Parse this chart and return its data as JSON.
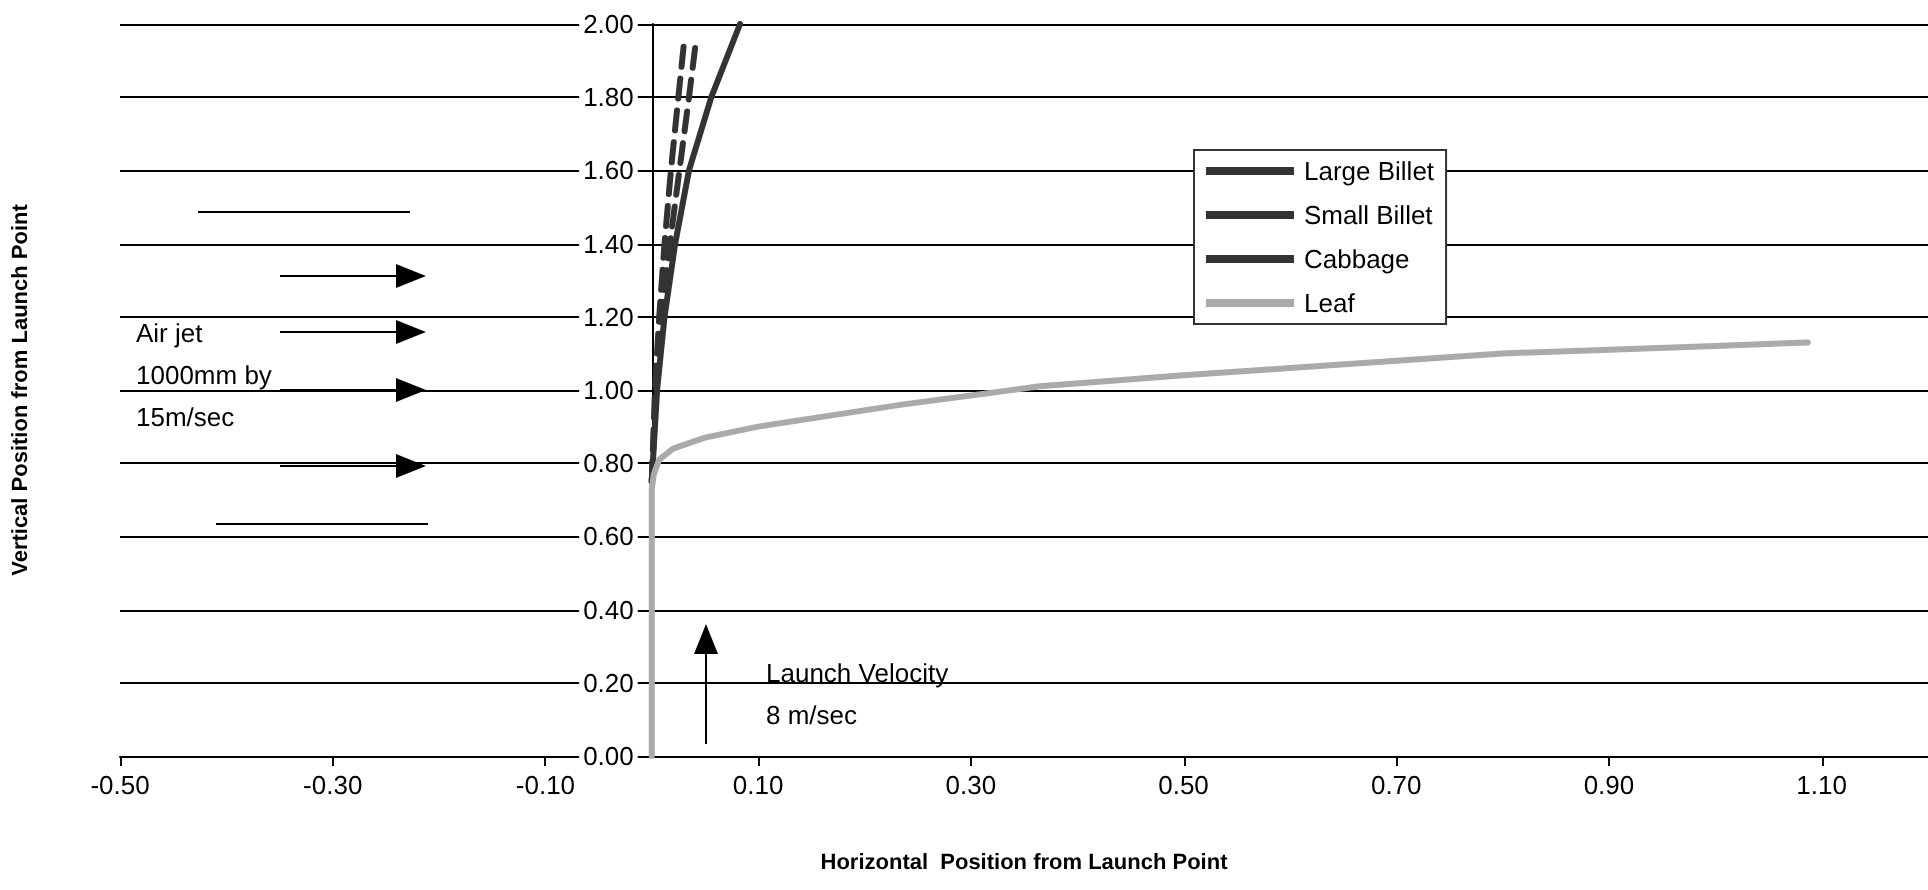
{
  "chart_data": {
    "type": "line",
    "xlabel": "Horizontal  Position from Launch Point",
    "ylabel": "Vertical Position from Launch Point",
    "xlim": [
      -0.5,
      1.2
    ],
    "xticks": [
      {
        "value": -0.5,
        "label": "-0.50"
      },
      {
        "value": -0.3,
        "label": "-0.30"
      },
      {
        "value": -0.1,
        "label": "-0.10"
      },
      {
        "value": 0.1,
        "label": "0.10"
      },
      {
        "value": 0.3,
        "label": "0.30"
      },
      {
        "value": 0.5,
        "label": "0.50"
      },
      {
        "value": 0.7,
        "label": "0.70"
      },
      {
        "value": 0.9,
        "label": "0.90"
      },
      {
        "value": 1.1,
        "label": "1.10"
      }
    ],
    "ylim": [
      0,
      2
    ],
    "yticks": [
      {
        "value": 0,
        "label": "0.00"
      },
      {
        "value": 0.2,
        "label": "0.20"
      },
      {
        "value": 0.4,
        "label": "0.40"
      },
      {
        "value": 0.6,
        "label": "0.60"
      },
      {
        "value": 0.8,
        "label": "0.80"
      },
      {
        "value": 1,
        "label": "1.00"
      },
      {
        "value": 1.2,
        "label": "1.20"
      },
      {
        "value": 1.4,
        "label": "1.40"
      },
      {
        "value": 1.6,
        "label": "1.60"
      },
      {
        "value": 1.8,
        "label": "1.80"
      },
      {
        "value": 2,
        "label": "2.00"
      }
    ],
    "grid": "y",
    "legend": "right",
    "marker": "none",
    "annotations": [
      "Air jet\n1000mm by\n15m/sec",
      "Launch Velocity\n8 m/sec"
    ],
    "series": [
      {
        "name": "Large Billet",
        "color": "#333333",
        "line_style": "solid",
        "x": [
          0,
          0.005,
          0.012,
          0.022,
          0.035,
          0.056,
          0.083
        ],
        "values": [
          0.75,
          1.0,
          1.2,
          1.4,
          1.6,
          1.8,
          2.0
        ]
      },
      {
        "name": "Small Billet",
        "color": "#333333",
        "line_style": "dashed",
        "x": [
          0,
          0.004,
          0.009,
          0.017,
          0.026,
          0.035,
          0.041
        ],
        "values": [
          0.75,
          1.0,
          1.2,
          1.4,
          1.6,
          1.8,
          1.94
        ]
      },
      {
        "name": "Cabbage",
        "color": "#333333",
        "line_style": "dashed",
        "x": [
          0,
          0.003,
          0.007,
          0.012,
          0.018,
          0.025,
          0.03
        ],
        "values": [
          0.75,
          1.0,
          1.2,
          1.4,
          1.6,
          1.8,
          1.94
        ]
      },
      {
        "name": "Leaf",
        "color": "#aaaaaa",
        "line_style": "solid",
        "x": [
          0,
          0,
          0.002,
          0.007,
          0.02,
          0.05,
          0.1,
          0.235,
          0.365,
          0.5,
          0.6,
          0.7,
          0.8,
          0.9,
          1.0,
          1.087
        ],
        "values": [
          0,
          0.73,
          0.77,
          0.81,
          0.84,
          0.87,
          0.9,
          0.96,
          1.01,
          1.04,
          1.06,
          1.08,
          1.1,
          1.11,
          1.12,
          1.13
        ]
      }
    ]
  }
}
